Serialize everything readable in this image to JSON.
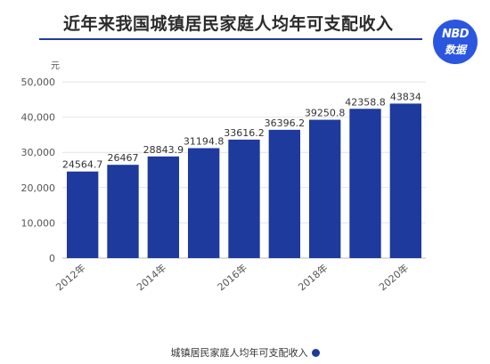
{
  "title": "近年来我国城镇居民家庭人均年可支配收入",
  "logo": {
    "line1": "NBD",
    "line2": "数据"
  },
  "colors": {
    "bar": "#1d3a9c",
    "accent": "#1f3f8f",
    "logo_bg": "#2a56e0",
    "grid": "#e4e4e4",
    "axis_text": "#555555"
  },
  "chart_data": {
    "type": "bar",
    "categories": [
      "2012年",
      "2013年",
      "2014年",
      "2015年",
      "2016年",
      "2017年",
      "2018年",
      "2019年",
      "2020年"
    ],
    "values": [
      24564.7,
      26467,
      28843.9,
      31194.8,
      33616.2,
      36396.2,
      39250.8,
      42358.8,
      43834
    ],
    "value_labels": [
      "24564.7",
      "26467",
      "28843.9",
      "31194.8",
      "33616.2",
      "36396.2",
      "39250.8",
      "42358.8",
      "43834"
    ],
    "x_tick_labels": [
      "2012年",
      "",
      "2014年",
      "",
      "2016年",
      "",
      "2018年",
      "",
      "2020年"
    ],
    "y_ticks": [
      0,
      10000,
      20000,
      30000,
      40000,
      50000
    ],
    "y_tick_labels": [
      "0",
      "10,000",
      "20,000",
      "30,000",
      "40,000",
      "50,000"
    ],
    "ylim": [
      0,
      50000
    ],
    "ylabel": "元",
    "xlabel": "",
    "grid": true,
    "legend": {
      "position": "bottom-center",
      "entries": [
        "城镇居民家庭人均年可支配收入"
      ]
    }
  }
}
